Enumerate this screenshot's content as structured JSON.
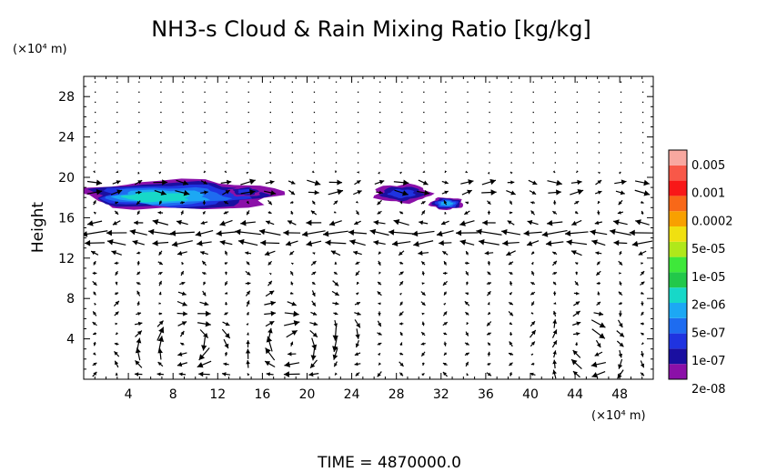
{
  "chart_data": {
    "type": "heatmap",
    "title": "NH3-s Cloud & Rain Mixing Ratio [kg/kg]",
    "xlabel": "",
    "x_unit": "(×10⁴ m)",
    "ylabel": "Height",
    "y_unit": "(×10⁴ m)",
    "xlim": [
      0,
      51
    ],
    "ylim": [
      0,
      30
    ],
    "xticks": [
      4,
      8,
      12,
      16,
      20,
      24,
      28,
      32,
      36,
      40,
      44,
      48
    ],
    "yticks": [
      4,
      8,
      12,
      16,
      20,
      24,
      28
    ],
    "grid": false,
    "time_label": "TIME  =  4870000.0",
    "colorbar": {
      "label_values": [
        "0.005",
        "0.001",
        "0.0002",
        "5e-05",
        "1e-05",
        "2e-06",
        "5e-07",
        "1e-07",
        "2e-08"
      ],
      "bins": [
        {
          "color": "#8b10a8"
        },
        {
          "color": "#1a0fa0"
        },
        {
          "color": "#1f33e0"
        },
        {
          "color": "#1e6cf0"
        },
        {
          "color": "#1ca8f4"
        },
        {
          "color": "#17d8c8"
        },
        {
          "color": "#22c84a"
        },
        {
          "color": "#3ee83a"
        },
        {
          "color": "#b0e81a"
        },
        {
          "color": "#f0e010"
        },
        {
          "color": "#f8a000"
        },
        {
          "color": "#f86818"
        },
        {
          "color": "#f81818"
        },
        {
          "color": "#f85848"
        },
        {
          "color": "#f8a8a0"
        }
      ]
    },
    "cloud_regions": [
      {
        "name": "left cloud",
        "x_range": [
          0,
          17.5
        ],
        "y_range": [
          16.8,
          19.7
        ],
        "peak_value": "2e-06"
      },
      {
        "name": "center cloud",
        "x_range": [
          26,
          31
        ],
        "y_range": [
          17.5,
          19.3
        ],
        "peak_value": "1e-07"
      },
      {
        "name": "right cloud",
        "x_range": [
          31,
          34
        ],
        "y_range": [
          16.8,
          18.0
        ],
        "peak_value": "5e-07"
      },
      {
        "name": "mid cloud",
        "x_range": [
          13,
          16
        ],
        "y_range": [
          18.1,
          19.1
        ],
        "peak_value": "1e-07"
      }
    ],
    "wind_vectors": {
      "description": "velocity field arrows on a regular grid",
      "features": [
        {
          "type": "eddy",
          "center_x": 9,
          "center_y": 3.5,
          "radius_x": 3.5,
          "radius_y": 3,
          "rotation": "cw"
        },
        {
          "type": "eddy",
          "center_x": 19,
          "center_y": 3.5,
          "radius_x": 4,
          "radius_y": 3.5,
          "rotation": "cw"
        },
        {
          "type": "eddy",
          "center_x": 45,
          "center_y": 3,
          "radius_x": 3,
          "radius_y": 2.5,
          "rotation": "cw"
        },
        {
          "type": "jet",
          "y_min": 12.5,
          "y_max": 16,
          "direction": "westward",
          "strength": 1.0
        },
        {
          "type": "jet",
          "y_min": 18.5,
          "y_max": 19.5,
          "direction": "eastward",
          "strength": 0.8
        }
      ]
    }
  }
}
